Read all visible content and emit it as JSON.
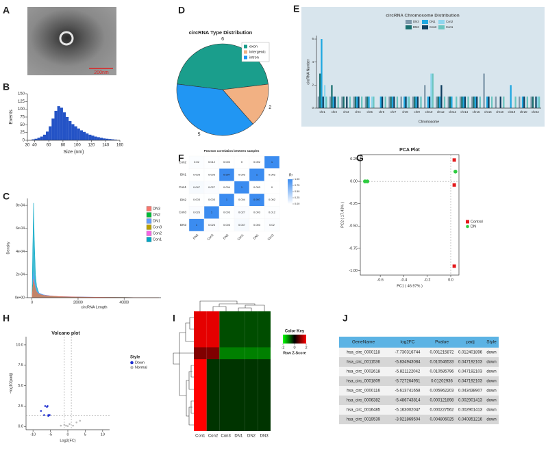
{
  "chart_data": [
    {
      "panel": "A",
      "type": "image",
      "scale_label": "200nm"
    },
    {
      "panel": "B",
      "type": "histogram",
      "xlabel": "Size (nm)",
      "ylabel": "Events",
      "bins": [
        36,
        40,
        44,
        48,
        52,
        56,
        60,
        64,
        68,
        72,
        76,
        80,
        84,
        88,
        92,
        96,
        100,
        104,
        108,
        112,
        116,
        120,
        124,
        128,
        132,
        136,
        140,
        144,
        148,
        152,
        156
      ],
      "values": [
        3,
        5,
        8,
        12,
        18,
        28,
        45,
        70,
        95,
        110,
        105,
        90,
        75,
        62,
        52,
        45,
        38,
        32,
        27,
        22,
        18,
        15,
        12,
        10,
        8,
        6,
        5,
        4,
        3,
        2
      ],
      "color": "#2453c6",
      "xlim": [
        30,
        160
      ],
      "ylim": [
        0,
        150
      ],
      "xticks": [
        30,
        40,
        60,
        80,
        100,
        120,
        140,
        160
      ],
      "yticks": [
        0,
        25,
        50,
        75,
        100,
        125,
        150
      ]
    },
    {
      "panel": "C",
      "type": "area",
      "xlabel": "circRNA Length",
      "ylabel": "Density",
      "x": [
        0,
        300,
        700,
        1000,
        1500,
        2000,
        3000,
        5000,
        8000,
        12000,
        20000,
        30000,
        40000,
        55000
      ],
      "series": [
        {
          "name": "DN3",
          "color": "#F8766D",
          "values": [
            0,
            8e-05,
            0.00016,
            0.00012,
            8e-05,
            5e-05,
            3e-05,
            2e-05,
            1.5e-05,
            1e-05,
            6e-06,
            4e-06,
            2e-06,
            0
          ]
        },
        {
          "name": "DN2",
          "color": "#00BA38",
          "values": [
            0,
            0.0001,
            0.00015,
            0.00011,
            7e-05,
            5e-05,
            3e-05,
            2e-05,
            1.2e-05,
            8e-06,
            5e-06,
            3e-06,
            2e-06,
            0
          ]
        },
        {
          "name": "DN1",
          "color": "#619CFF",
          "values": [
            0,
            0.0001,
            0.00022,
            0.00015,
            9e-05,
            6e-05,
            4e-05,
            2.5e-05,
            1.6e-05,
            1e-05,
            7e-06,
            4e-06,
            2e-06,
            0
          ]
        },
        {
          "name": "Con3",
          "color": "#B79F00",
          "values": [
            0,
            7e-05,
            0.00012,
            0.0001,
            7e-05,
            5e-05,
            3e-05,
            2e-05,
            1.2e-05,
            8e-06,
            5e-06,
            3e-06,
            2e-06,
            0
          ]
        },
        {
          "name": "Con2",
          "color": "#F564E3",
          "values": [
            0,
            6e-05,
            0.0001,
            8e-05,
            6e-05,
            4e-05,
            3e-05,
            2e-05,
            1.2e-05,
            8e-06,
            5e-06,
            3e-06,
            2e-06,
            0
          ]
        },
        {
          "name": "Con1",
          "color": "#00A5C4",
          "values": [
            0,
            0.0004,
            0.00082,
            0.0005,
            0.0002,
            0.0001,
            4e-05,
            2e-05,
            1e-05,
            8e-06,
            5e-06,
            3e-06,
            2e-06,
            0
          ]
        }
      ],
      "xlim": [
        -2000,
        56000
      ],
      "ylim": [
        0,
        0.00086
      ],
      "xticks": [
        0,
        20000,
        40000
      ],
      "yticks": [
        {
          "value": 0,
          "label": "0e+00"
        },
        {
          "value": 0.0002,
          "label": "2e-04"
        },
        {
          "value": 0.0004,
          "label": "4e-04"
        },
        {
          "value": 0.0006,
          "label": "6e-04"
        },
        {
          "value": 0.0008,
          "label": "8e-04"
        }
      ]
    },
    {
      "panel": "D",
      "type": "pie",
      "title": "circRNA Type Distribution",
      "categories": [
        "exon",
        "intergenic",
        "intron"
      ],
      "values": [
        6,
        2,
        5
      ],
      "colors": [
        "#1a9e8c",
        "#f2b183",
        "#2196f3"
      ]
    },
    {
      "panel": "E",
      "type": "bar",
      "title": "circRNA Chromosome Distribution",
      "xlabel": "Chromosome",
      "ylabel": "circRNA Number",
      "categories": [
        "chr1",
        "chr2",
        "chr3",
        "chr4",
        "chr5",
        "chr6",
        "chr7",
        "chr8",
        "chr9",
        "chr10",
        "chr12",
        "chr13",
        "chr14",
        "chr15",
        "chr16",
        "chr18",
        "chr19",
        "chr20",
        "chr22"
      ],
      "series": [
        {
          "name": "DN3",
          "color": "#7f98aa",
          "values": [
            1,
            1,
            1,
            1,
            1,
            0,
            1,
            1,
            1,
            2,
            1,
            1,
            1,
            1,
            3,
            1,
            0,
            1,
            1
          ]
        },
        {
          "name": "DN2",
          "color": "#1a6f6f",
          "values": [
            3,
            2,
            1,
            1,
            1,
            0,
            1,
            0,
            1,
            0,
            1,
            1,
            1,
            1,
            0,
            0,
            0,
            0,
            1
          ]
        },
        {
          "name": "DN1",
          "color": "#1ea7e1",
          "values": [
            6,
            1,
            0,
            1,
            1,
            1,
            1,
            1,
            1,
            1,
            1,
            1,
            1,
            1,
            1,
            0,
            2,
            1,
            0
          ]
        },
        {
          "name": "Con3",
          "color": "#0e3d5e",
          "values": [
            1,
            1,
            1,
            1,
            0,
            1,
            1,
            1,
            1,
            1,
            2,
            0,
            1,
            1,
            1,
            1,
            0,
            1,
            1
          ]
        },
        {
          "name": "Con2",
          "color": "#8fd6ee",
          "values": [
            2,
            0,
            0,
            0,
            1,
            0,
            0,
            1,
            0,
            3,
            0,
            0,
            0,
            0,
            0,
            0,
            0,
            0,
            1
          ]
        },
        {
          "name": "Con1",
          "color": "#6cc5c0",
          "values": [
            1,
            1,
            1,
            1,
            1,
            1,
            1,
            1,
            1,
            3,
            1,
            1,
            1,
            1,
            1,
            1,
            1,
            1,
            1
          ]
        }
      ],
      "ylim": [
        0,
        6.3
      ],
      "yticks": [
        0,
        2,
        4,
        6
      ]
    },
    {
      "panel": "F",
      "type": "heatmap",
      "title": "Pearson correlation between samples",
      "x": [
        "DN3",
        "Con3",
        "DN2",
        "Con1",
        "DN1",
        "Con2"
      ],
      "y": [
        "Con2",
        "DN1",
        "Con1",
        "DN2",
        "Con3",
        "DN3"
      ],
      "values": [
        [
          0.02,
          0.012,
          0.002,
          0,
          0.002,
          1
        ],
        [
          0.003,
          0.003,
          0.997,
          0.003,
          1,
          0.002
        ],
        [
          0.047,
          0.027,
          0.004,
          1,
          0.003,
          0
        ],
        [
          0.003,
          0.003,
          1,
          0.004,
          0.997,
          0.002
        ],
        [
          0.026,
          1,
          0.003,
          0.027,
          0.003,
          0.012
        ],
        [
          1,
          0.026,
          0.003,
          0.047,
          0.003,
          0.02
        ]
      ],
      "annotate": true,
      "colors": [
        "#ffffff",
        "#3b8cf0"
      ],
      "clim": [
        0,
        1
      ],
      "legend_title": "R²",
      "cticks": [
        {
          "value": 0,
          "label": "0.00"
        },
        0.25,
        {
          "value": 0.5,
          "label": "0.50"
        },
        0.75,
        {
          "value": 1,
          "label": "1.00"
        }
      ]
    },
    {
      "panel": "G",
      "type": "scatter",
      "title": "PCA Plot",
      "xlabel": "PC1 ( 46.97% )",
      "ylabel": "PC2 ( 17.43% )",
      "series": [
        {
          "name": "Control",
          "color": "#e41a1c",
          "marker": "square",
          "x": [
            0.03,
            0.03,
            0.03
          ],
          "y": [
            0.24,
            -0.04,
            -0.95
          ]
        },
        {
          "name": "DN",
          "color": "#2ecc40",
          "marker": "circle",
          "x": [
            -0.73,
            -0.71,
            0.04
          ],
          "y": [
            0,
            0,
            0.11
          ]
        }
      ],
      "xlim": [
        -0.77,
        0.07
      ],
      "ylim": [
        -1.05,
        0.3
      ],
      "xticks": [
        -0.6,
        -0.4,
        -0.2,
        {
          "value": 0,
          "label": "0.0"
        }
      ],
      "yticks": [
        0.25,
        {
          "value": 0,
          "label": "0.00"
        },
        -0.25,
        {
          "value": -0.5,
          "label": "-0.50"
        },
        -0.75,
        {
          "value": -1,
          "label": "-1.00"
        }
      ],
      "hlines": [
        0
      ],
      "vlines": [
        0
      ]
    },
    {
      "panel": "H",
      "type": "scatter",
      "title": "Volcano plot",
      "xlabel": "Log2(FC)",
      "ylabel": "−log10(padj)",
      "legend_title": "Style",
      "series": [
        {
          "name": "Down",
          "color": "#2030d0",
          "marker": "circle",
          "x": [
            -6.5,
            -6,
            -5.8,
            -5.6,
            -5.2,
            -5.6,
            -6.8,
            -7.7
          ],
          "y": [
            2.5,
            2.4,
            2.5,
            1.4,
            1.4,
            1.3,
            1.4,
            1.9
          ]
        },
        {
          "name": "Normal",
          "color": "#bbbbbb",
          "marker": "circle",
          "x": [
            -1,
            -0.5,
            0.5,
            1.5,
            2.5,
            3.5,
            -2,
            0
          ],
          "y": [
            0.2,
            0.1,
            0.3,
            0.1,
            0.5,
            0.7,
            0.1,
            0.05
          ]
        }
      ],
      "xlim": [
        -12,
        12
      ],
      "ylim": [
        -0.4,
        11
      ],
      "xticks": [
        -10,
        -5,
        0,
        5,
        10
      ],
      "yticks": [
        {
          "value": 0,
          "label": "0.0"
        },
        2.5,
        {
          "value": 5,
          "label": "5.0"
        },
        7.5,
        {
          "value": 10,
          "label": "10.0"
        }
      ],
      "hlines": [
        1.3
      ],
      "vlines": [
        -1,
        1
      ]
    },
    {
      "panel": "I",
      "type": "heatmap",
      "x": [
        "Con1",
        "Con2",
        "Con3",
        "DN1",
        "DN2",
        "DN3"
      ],
      "values": [
        [
          1.8,
          1.8,
          -0.6,
          -0.6,
          -0.6,
          -0.6
        ],
        [
          1.8,
          1.8,
          -0.6,
          -0.6,
          -0.6,
          -0.6
        ],
        [
          1.8,
          1.8,
          -0.6,
          -0.6,
          -0.6,
          -0.6
        ],
        [
          1.0,
          1.0,
          -1.0,
          -1.0,
          -1.0,
          -1.0
        ],
        [
          2.04,
          -0.41,
          -0.41,
          -0.41,
          -0.41,
          -0.41
        ],
        [
          2.04,
          -0.41,
          -0.41,
          -0.41,
          -0.41,
          -0.41
        ],
        [
          2.04,
          -0.41,
          -0.41,
          -0.41,
          -0.41,
          -0.41
        ],
        [
          2.04,
          -0.41,
          -0.41,
          -0.41,
          -0.41,
          -0.41
        ],
        [
          2.04,
          -0.41,
          -0.41,
          -0.41,
          -0.41,
          -0.41
        ],
        [
          2.04,
          -0.41,
          -0.41,
          -0.41,
          -0.41,
          -0.41
        ]
      ],
      "colors": [
        "#00ff00",
        "#000000",
        "#ff0000"
      ],
      "clim": [
        -2,
        2
      ],
      "cticks": [
        -2,
        0,
        2
      ],
      "legend_title": "Color Key",
      "clabel": "Row Z-Score"
    },
    {
      "panel": "J",
      "type": "table",
      "columns": [
        "GeneName",
        "log2FC",
        "Pvalue",
        "padj",
        "Style"
      ],
      "rows": [
        [
          "hsa_circ_0000118",
          "-7.730316744",
          "0.001215872",
          "0.012401896",
          "down"
        ],
        [
          "hsa_circ_0011536",
          "-5.834943084",
          "0.010546533",
          "0.047192103",
          "down"
        ],
        [
          "hsa_circ_0002618",
          "-5.821122042",
          "0.010585796",
          "0.047192103",
          "down"
        ],
        [
          "hsa_circ_0001809",
          "-5.727264951",
          "0.01202936",
          "0.047192103",
          "down"
        ],
        [
          "hsa_circ_0000116",
          "-5.613741658",
          "0.005962203",
          "0.043438907",
          "down"
        ],
        [
          "hsa_circ_0006382",
          "-5.486743814",
          "0.000121898",
          "0.002901413",
          "down"
        ],
        [
          "hsa_circ_0016485",
          "-5.163002047",
          "0.000227562",
          "0.002901413",
          "down"
        ],
        [
          "hsa_circ_0019539",
          "-3.921869504",
          "0.004806025",
          "0.040851216",
          "down"
        ]
      ]
    }
  ]
}
